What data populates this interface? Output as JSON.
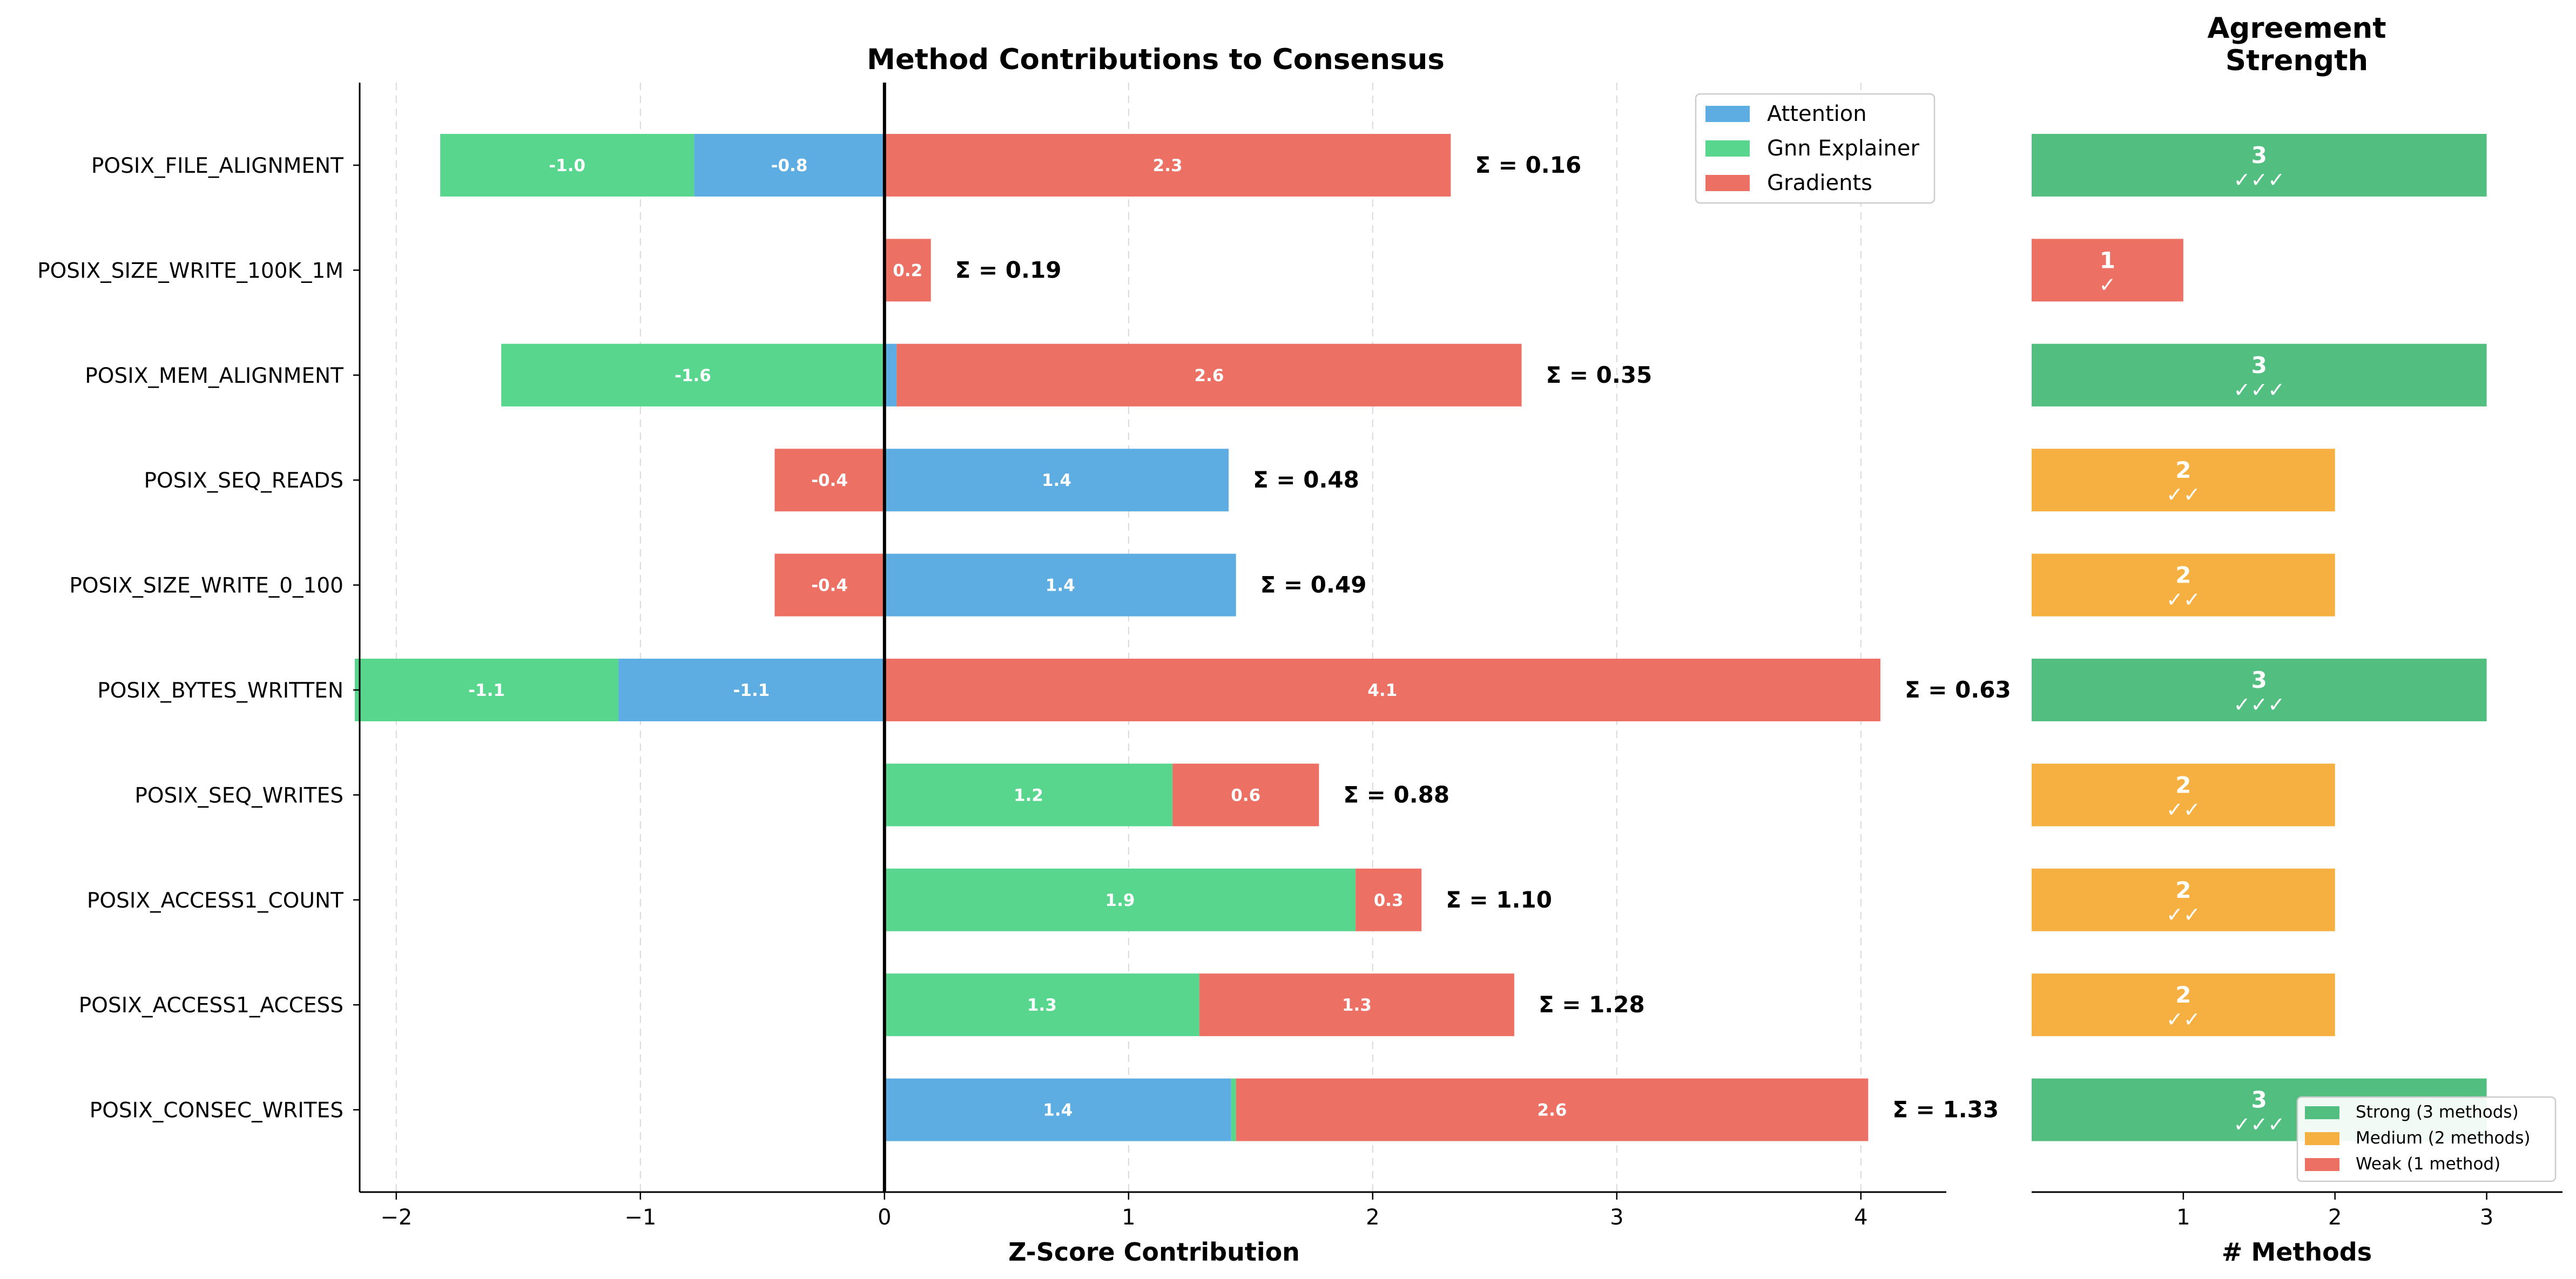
{
  "chart_data": [
    {
      "type": "bar",
      "orientation": "horizontal",
      "stacked": true,
      "title": "Method Contributions to Consensus",
      "xlabel": "Z-Score Contribution",
      "ylabel": "",
      "xlim": [
        -2.15,
        4.35
      ],
      "xticks": [
        -2,
        -1,
        0,
        1,
        2,
        3,
        4
      ],
      "xtick_labels": [
        "−2",
        "−1",
        "0",
        "1",
        "2",
        "3",
        "4"
      ],
      "grid": "x dashed",
      "legend_position": "top-right",
      "categories": [
        "POSIX_FILE_ALIGNMENT",
        "POSIX_SIZE_WRITE_100K_1M",
        "POSIX_MEM_ALIGNMENT",
        "POSIX_SEQ_READS",
        "POSIX_SIZE_WRITE_0_100",
        "POSIX_BYTES_WRITTEN",
        "POSIX_SEQ_WRITES",
        "POSIX_ACCESS1_COUNT",
        "POSIX_ACCESS1_ACCESS",
        "POSIX_CONSEC_WRITES"
      ],
      "series": [
        {
          "name": "Attention",
          "color": "#5dade2",
          "values": [
            -0.78,
            0,
            0.05,
            1.41,
            1.44,
            -1.09,
            0,
            0,
            0,
            1.42
          ]
        },
        {
          "name": "Gnn Explainer",
          "color": "#58d68d",
          "values": [
            -1.04,
            0,
            -1.57,
            0,
            0,
            -1.08,
            1.18,
            1.93,
            1.29,
            0.02
          ]
        },
        {
          "name": "Gradients",
          "color": "#ec7063",
          "values": [
            2.32,
            0.19,
            2.56,
            -0.45,
            -0.45,
            4.08,
            0.6,
            0.27,
            1.29,
            2.59
          ]
        }
      ],
      "bar_labels": [
        [
          "-0.8",
          "-1.0",
          "2.3"
        ],
        [
          "",
          "",
          "0.2"
        ],
        [
          "",
          "-1.6",
          "2.6"
        ],
        [
          "1.4",
          "",
          "-0.4"
        ],
        [
          "1.4",
          "",
          "-0.4"
        ],
        [
          "-1.1",
          "-1.1",
          "4.1"
        ],
        [
          "",
          "1.2",
          "0.6"
        ],
        [
          "",
          "1.9",
          "0.3"
        ],
        [
          "",
          "1.3",
          "1.3"
        ],
        [
          "1.4",
          "",
          "2.6"
        ]
      ],
      "sum_labels": [
        "Σ = 0.16",
        "Σ = 0.19",
        "Σ = 0.35",
        "Σ = 0.48",
        "Σ = 0.49",
        "Σ = 0.63",
        "Σ = 0.88",
        "Σ = 1.10",
        "Σ = 1.28",
        "Σ = 1.33"
      ]
    },
    {
      "type": "bar",
      "orientation": "horizontal",
      "title": "Agreement\nStrength",
      "xlabel": "# Methods",
      "xlim": [
        0,
        3.5
      ],
      "xticks": [
        1,
        2,
        3
      ],
      "xtick_labels": [
        "1",
        "2",
        "3"
      ],
      "values": [
        3,
        1,
        3,
        2,
        2,
        3,
        2,
        2,
        2,
        3
      ],
      "value_labels": [
        "3",
        "1",
        "3",
        "2",
        "2",
        "3",
        "2",
        "2",
        "2",
        "3"
      ],
      "check_labels": [
        "✓✓✓",
        "✓",
        "✓✓✓",
        "✓✓",
        "✓✓",
        "✓✓✓",
        "✓✓",
        "✓✓",
        "✓✓",
        "✓✓✓"
      ],
      "colors": {
        "3": "#52be80",
        "2": "#f5b041",
        "1": "#ec7063"
      },
      "legend_position": "lower-right",
      "legend": [
        {
          "label": "Strong (3 methods)",
          "color": "#52be80"
        },
        {
          "label": "Medium (2 methods)",
          "color": "#f5b041"
        },
        {
          "label": "Weak (1 method)",
          "color": "#ec7063"
        }
      ]
    }
  ]
}
